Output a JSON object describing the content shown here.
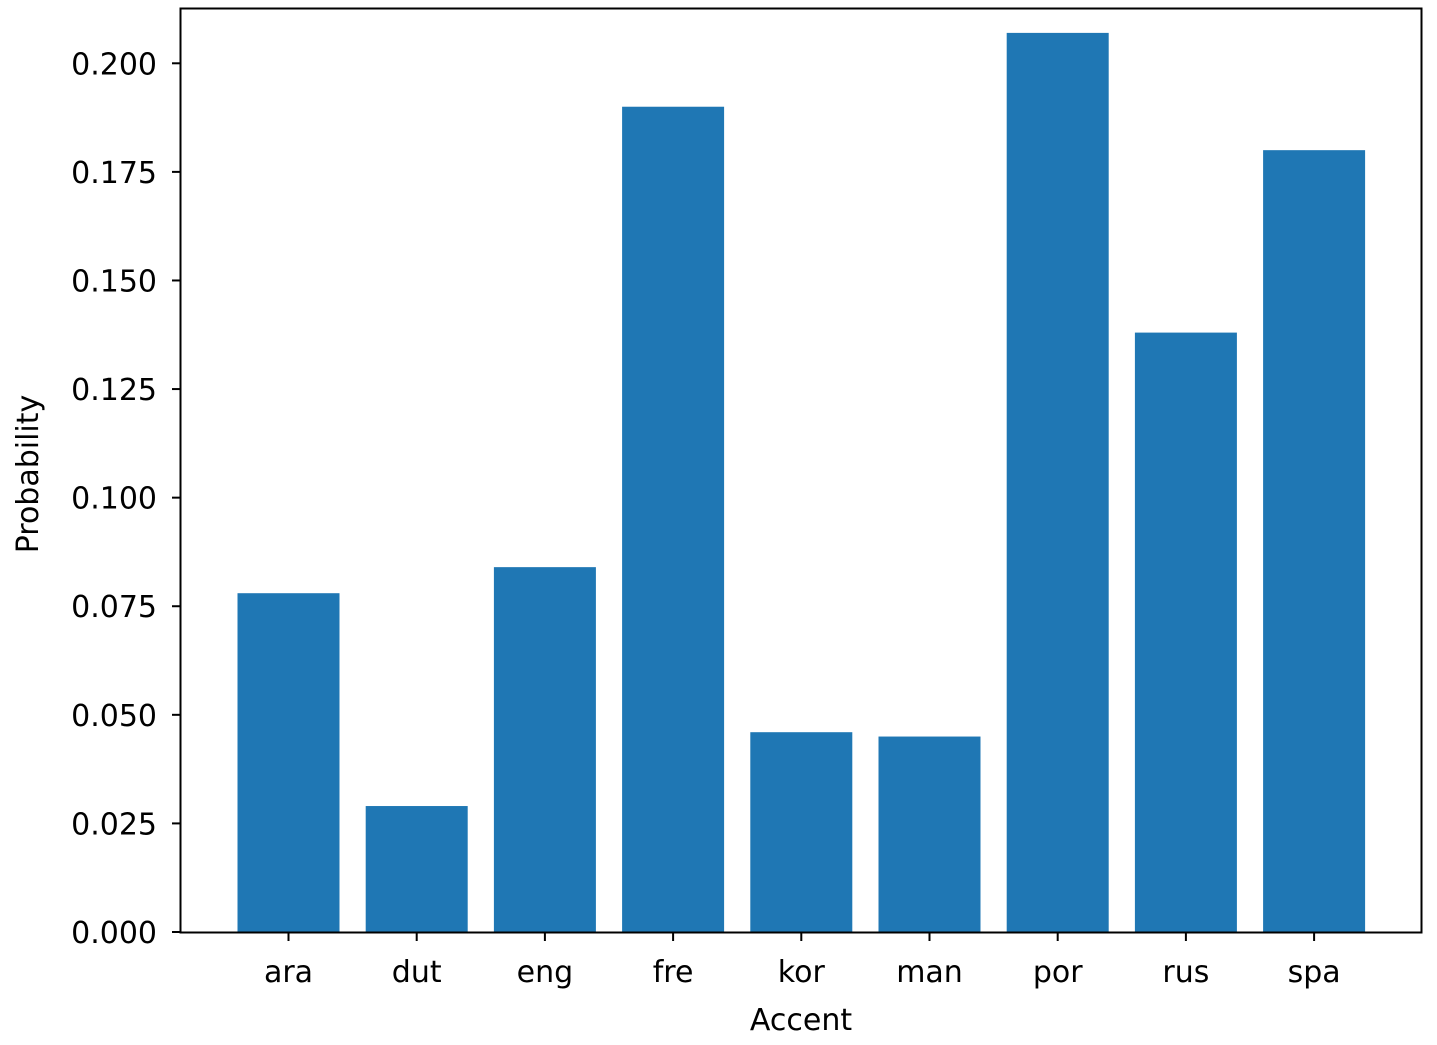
{
  "chart_data": {
    "type": "bar",
    "title": "",
    "xlabel": "Accent",
    "ylabel": "Probability",
    "categories": [
      "ara",
      "dut",
      "eng",
      "fre",
      "kor",
      "man",
      "por",
      "rus",
      "spa"
    ],
    "values": [
      0.078,
      0.029,
      0.084,
      0.19,
      0.046,
      0.045,
      0.207,
      0.138,
      0.18
    ],
    "ylim": [
      0.0,
      0.2125
    ],
    "yticks": [
      0.0,
      0.025,
      0.05,
      0.075,
      0.1,
      0.125,
      0.15,
      0.175,
      0.2
    ],
    "ytick_labels": [
      "0.000",
      "0.025",
      "0.050",
      "0.075",
      "0.100",
      "0.125",
      "0.150",
      "0.175",
      "0.200"
    ],
    "bar_color": "#1f77b4",
    "grid": false,
    "legend": "none"
  }
}
